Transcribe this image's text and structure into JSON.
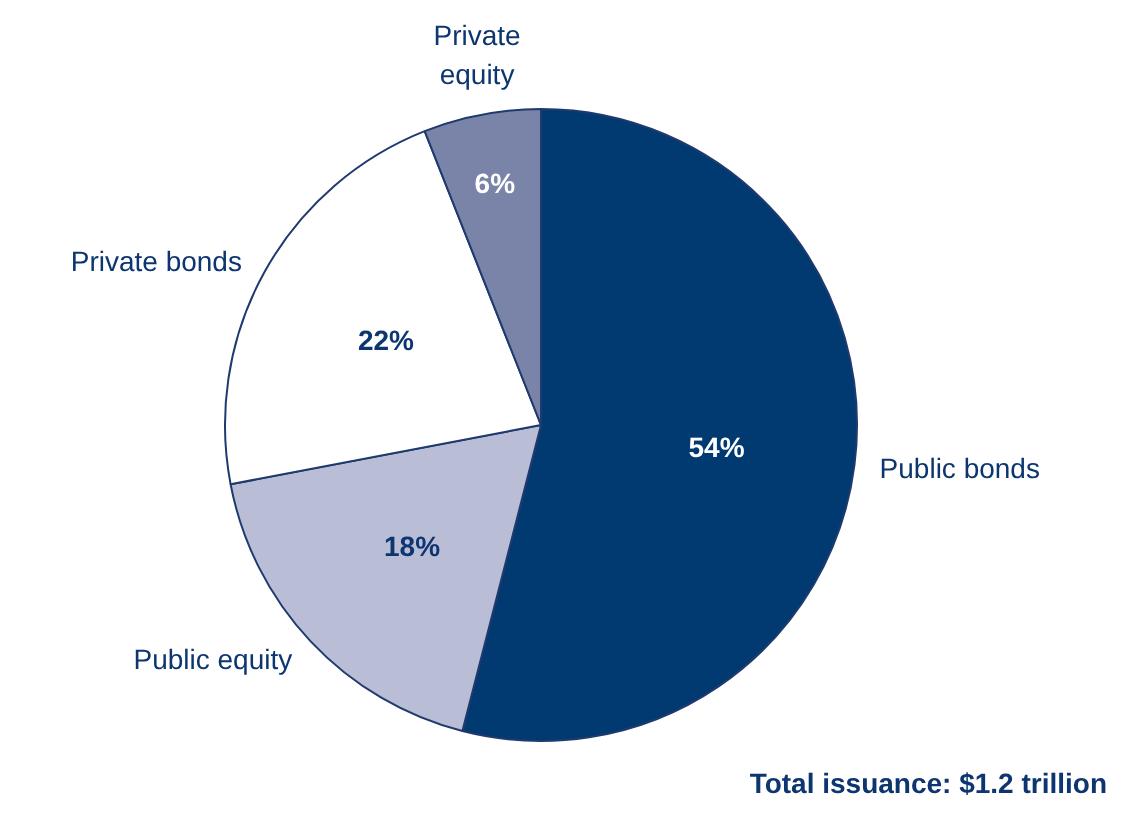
{
  "chart_data": {
    "type": "pie",
    "categories": [
      "Public bonds",
      "Public equity",
      "Private bonds",
      "Private equity"
    ],
    "values": [
      54,
      18,
      22,
      6
    ],
    "colors": [
      "#003a70",
      "#b9bed6",
      "#ffffff",
      "#7a84a9"
    ],
    "value_labels": [
      "54%",
      "18%",
      "22%",
      "6%"
    ],
    "annotations": [
      "Total issuance: $1.2 trillion"
    ]
  }
}
